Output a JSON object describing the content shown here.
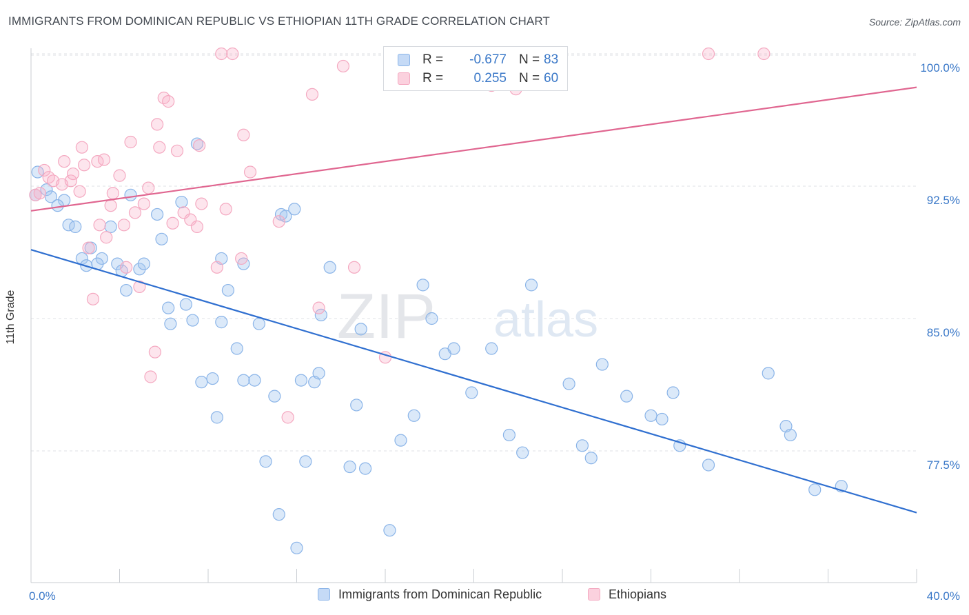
{
  "header": {
    "title": "IMMIGRANTS FROM DOMINICAN REPUBLIC VS ETHIOPIAN 11TH GRADE CORRELATION CHART",
    "source": "Source: ZipAtlas.com"
  },
  "watermark": {
    "part1": "ZIP",
    "part2": "atlas"
  },
  "legend": {
    "rows": [
      {
        "r_label": "R =",
        "r_value": "-0.677",
        "n_label": "N =",
        "n_value": "83",
        "color": "#8ab4e8"
      },
      {
        "r_label": "R =",
        "r_value": "0.255",
        "n_label": "N =",
        "n_value": "60",
        "color": "#f4a8c0"
      }
    ]
  },
  "chart_data": {
    "type": "scatter",
    "title": "IMMIGRANTS FROM DOMINICAN REPUBLIC VS ETHIOPIAN 11TH GRADE CORRELATION CHART",
    "xlabel": "",
    "ylabel": "11th Grade",
    "xlim": [
      0,
      40
    ],
    "ylim": [
      70.5,
      101
    ],
    "x_tick_labels": [
      "0.0%",
      "40.0%"
    ],
    "y_ticks": [
      77.5,
      85.0,
      92.5,
      100.0
    ],
    "y_tick_labels": [
      "77.5%",
      "85.0%",
      "92.5%",
      "100.0%"
    ],
    "grid": true,
    "legend_position": "bottom",
    "series": [
      {
        "name": "Immigrants from Dominican Republic",
        "color": "#8ab4e8",
        "line_color": "#2f6fd0",
        "trend": {
          "x": [
            0,
            40
          ],
          "y": [
            88.9,
            74.0
          ]
        },
        "points": [
          [
            0.3,
            93.3
          ],
          [
            0.7,
            92.3
          ],
          [
            0.2,
            92.0
          ],
          [
            0.9,
            91.9
          ],
          [
            1.5,
            91.7
          ],
          [
            1.2,
            91.4
          ],
          [
            1.7,
            90.3
          ],
          [
            2.0,
            90.2
          ],
          [
            2.7,
            89.0
          ],
          [
            2.3,
            88.4
          ],
          [
            2.5,
            88.0
          ],
          [
            3.2,
            88.4
          ],
          [
            3.0,
            88.1
          ],
          [
            3.6,
            90.2
          ],
          [
            3.9,
            88.1
          ],
          [
            4.1,
            87.7
          ],
          [
            4.5,
            92.0
          ],
          [
            4.9,
            87.8
          ],
          [
            5.1,
            88.1
          ],
          [
            5.7,
            90.9
          ],
          [
            5.9,
            89.5
          ],
          [
            4.3,
            86.6
          ],
          [
            6.8,
            91.6
          ],
          [
            7.5,
            94.9
          ],
          [
            6.2,
            85.6
          ],
          [
            7.0,
            85.8
          ],
          [
            7.3,
            84.9
          ],
          [
            6.3,
            84.7
          ],
          [
            8.6,
            88.4
          ],
          [
            8.9,
            86.6
          ],
          [
            9.6,
            88.1
          ],
          [
            8.6,
            84.8
          ],
          [
            9.3,
            83.3
          ],
          [
            10.3,
            84.7
          ],
          [
            11.3,
            90.9
          ],
          [
            11.5,
            90.8
          ],
          [
            11.9,
            91.2
          ],
          [
            7.7,
            81.4
          ],
          [
            8.4,
            79.4
          ],
          [
            8.2,
            81.6
          ],
          [
            9.6,
            81.5
          ],
          [
            10.1,
            81.5
          ],
          [
            10.6,
            76.9
          ],
          [
            11.0,
            80.6
          ],
          [
            11.2,
            73.9
          ],
          [
            12.0,
            72.0
          ],
          [
            12.2,
            81.5
          ],
          [
            12.4,
            76.9
          ],
          [
            12.8,
            81.4
          ],
          [
            13.0,
            81.9
          ],
          [
            13.1,
            85.2
          ],
          [
            13.5,
            87.9
          ],
          [
            14.4,
            76.6
          ],
          [
            14.7,
            80.1
          ],
          [
            14.9,
            84.4
          ],
          [
            15.1,
            76.5
          ],
          [
            16.2,
            73.0
          ],
          [
            16.7,
            78.1
          ],
          [
            17.3,
            79.5
          ],
          [
            17.7,
            86.9
          ],
          [
            18.1,
            85.0
          ],
          [
            18.7,
            83.0
          ],
          [
            19.1,
            83.3
          ],
          [
            19.9,
            80.8
          ],
          [
            20.8,
            83.3
          ],
          [
            21.6,
            78.4
          ],
          [
            22.2,
            77.4
          ],
          [
            22.6,
            86.9
          ],
          [
            24.3,
            81.3
          ],
          [
            24.9,
            77.8
          ],
          [
            25.3,
            77.1
          ],
          [
            25.8,
            82.4
          ],
          [
            26.9,
            80.6
          ],
          [
            28.0,
            79.5
          ],
          [
            28.5,
            79.3
          ],
          [
            29.0,
            80.8
          ],
          [
            29.3,
            77.8
          ],
          [
            30.6,
            76.7
          ],
          [
            33.3,
            81.9
          ],
          [
            34.1,
            78.9
          ],
          [
            34.3,
            78.4
          ],
          [
            35.4,
            75.3
          ],
          [
            36.6,
            75.5
          ]
        ]
      },
      {
        "name": "Ethiopians",
        "color": "#f4a8c0",
        "line_color": "#e06690",
        "trend": {
          "x": [
            0,
            40
          ],
          "y": [
            91.1,
            98.1
          ]
        },
        "points": [
          [
            0.2,
            92.0
          ],
          [
            0.4,
            92.1
          ],
          [
            0.6,
            93.4
          ],
          [
            0.8,
            93.0
          ],
          [
            1.0,
            92.8
          ],
          [
            1.4,
            92.6
          ],
          [
            1.5,
            93.9
          ],
          [
            1.8,
            92.8
          ],
          [
            1.9,
            93.2
          ],
          [
            2.2,
            92.2
          ],
          [
            2.3,
            94.7
          ],
          [
            2.4,
            93.7
          ],
          [
            2.6,
            89.0
          ],
          [
            2.8,
            86.1
          ],
          [
            3.0,
            93.9
          ],
          [
            3.1,
            90.3
          ],
          [
            3.3,
            94.0
          ],
          [
            3.4,
            89.6
          ],
          [
            3.6,
            91.4
          ],
          [
            3.7,
            92.1
          ],
          [
            4.0,
            93.1
          ],
          [
            4.2,
            90.3
          ],
          [
            4.3,
            87.9
          ],
          [
            4.5,
            95.0
          ],
          [
            4.7,
            91.0
          ],
          [
            4.9,
            86.8
          ],
          [
            5.1,
            91.5
          ],
          [
            5.3,
            92.4
          ],
          [
            5.4,
            81.7
          ],
          [
            5.6,
            83.1
          ],
          [
            5.7,
            96.0
          ],
          [
            5.8,
            94.7
          ],
          [
            6.0,
            97.5
          ],
          [
            6.2,
            97.3
          ],
          [
            6.4,
            90.4
          ],
          [
            6.6,
            94.5
          ],
          [
            6.9,
            91.0
          ],
          [
            7.2,
            90.6
          ],
          [
            7.5,
            90.2
          ],
          [
            7.7,
            91.5
          ],
          [
            8.4,
            87.9
          ],
          [
            8.6,
            100.0
          ],
          [
            8.8,
            91.2
          ],
          [
            9.1,
            100.0
          ],
          [
            9.5,
            88.4
          ],
          [
            9.6,
            95.4
          ],
          [
            9.9,
            93.3
          ],
          [
            11.2,
            90.5
          ],
          [
            11.6,
            79.4
          ],
          [
            12.7,
            97.7
          ],
          [
            13.0,
            85.6
          ],
          [
            14.1,
            99.3
          ],
          [
            14.6,
            87.9
          ],
          [
            16.0,
            82.8
          ],
          [
            17.1,
            98.4
          ],
          [
            20.8,
            98.2
          ],
          [
            21.9,
            98.0
          ],
          [
            30.6,
            100.0
          ],
          [
            33.1,
            100.0
          ],
          [
            7.6,
            94.8
          ]
        ]
      }
    ]
  },
  "bottom_legend": [
    {
      "label": "Immigrants from Dominican Republic",
      "color": "#8ab4e8"
    },
    {
      "label": "Ethiopians",
      "color": "#f4a8c0"
    }
  ]
}
